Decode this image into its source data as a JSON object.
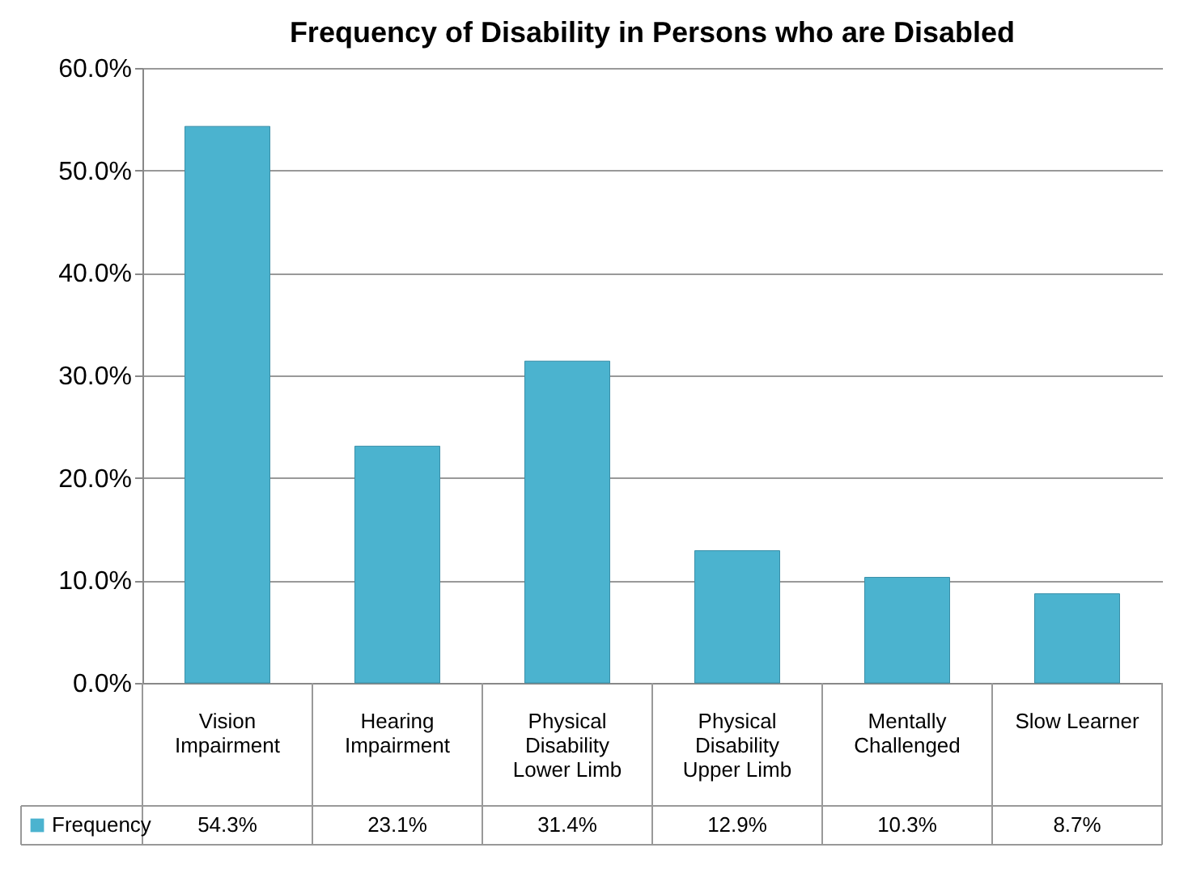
{
  "chart_data": {
    "type": "bar",
    "title": "Frequency of Disability in Persons who are Disabled",
    "categories": [
      "Vision Impairment",
      "Hearing Impairment",
      "Physical Disability Lower Limb",
      "Physical Disability Upper Limb",
      "Mentally Challenged",
      "Slow Learner"
    ],
    "series": [
      {
        "name": "Frequency",
        "color": "#4bb3cf",
        "values": [
          54.3,
          23.1,
          31.4,
          12.9,
          10.3,
          8.7
        ]
      }
    ],
    "ylim": [
      0,
      60
    ],
    "yticks": [
      {
        "value": 0,
        "label": "0.0%"
      },
      {
        "value": 10,
        "label": "10.0%"
      },
      {
        "value": 20,
        "label": "20.0%"
      },
      {
        "value": 30,
        "label": "30.0%"
      },
      {
        "value": 40,
        "label": "40.0%"
      },
      {
        "value": 50,
        "label": "50.0%"
      },
      {
        "value": 60,
        "label": "60.0%"
      }
    ],
    "value_labels": [
      "54.3%",
      "23.1%",
      "31.4%",
      "12.9%",
      "10.3%",
      "8.7%"
    ],
    "grid": true,
    "legend": "bottom"
  }
}
